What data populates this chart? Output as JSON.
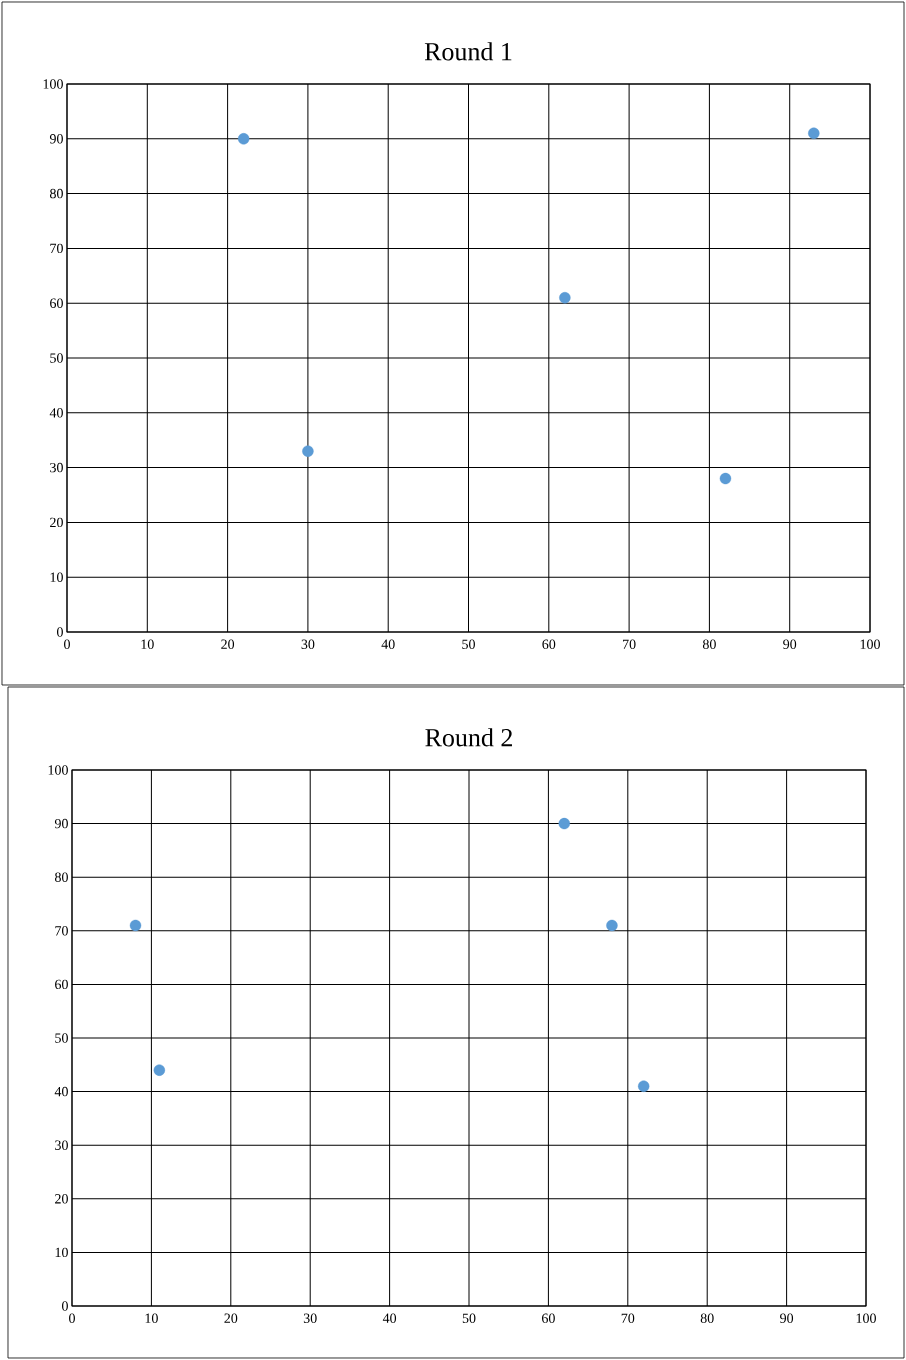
{
  "chart_data": [
    {
      "type": "scatter",
      "title": "Round 1",
      "x": [
        22,
        30,
        62,
        82,
        93
      ],
      "values": [
        90,
        33,
        61,
        28,
        91
      ],
      "color": "#5b9bd5",
      "grid": true,
      "xlim": [
        0,
        100
      ],
      "ylim": [
        0,
        100
      ],
      "xticks": [
        0,
        10,
        20,
        30,
        40,
        50,
        60,
        70,
        80,
        90,
        100
      ],
      "yticks": [
        0,
        10,
        20,
        30,
        40,
        50,
        60,
        70,
        80,
        90,
        100
      ]
    },
    {
      "type": "scatter",
      "title": "Round 2",
      "x": [
        8,
        11,
        62,
        68,
        72
      ],
      "values": [
        71,
        44,
        90,
        71,
        41
      ],
      "color": "#5b9bd5",
      "grid": true,
      "xlim": [
        0,
        100
      ],
      "ylim": [
        0,
        100
      ],
      "xticks": [
        0,
        10,
        20,
        30,
        40,
        50,
        60,
        70,
        80,
        90,
        100
      ],
      "yticks": [
        0,
        10,
        20,
        30,
        40,
        50,
        60,
        70,
        80,
        90,
        100
      ]
    }
  ]
}
